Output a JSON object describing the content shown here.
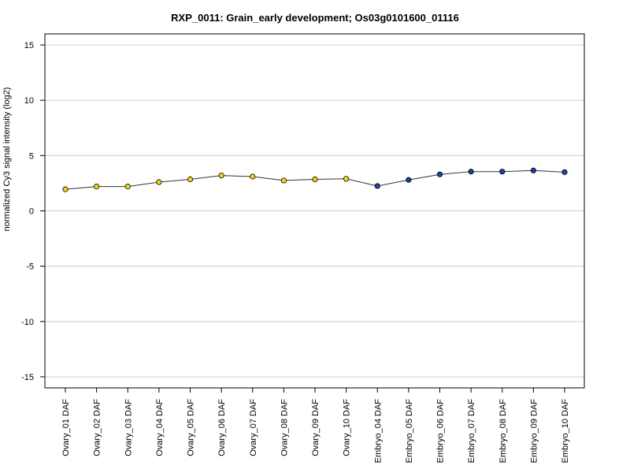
{
  "chart_data": {
    "type": "line",
    "title": "RXP_0011: Grain_early development; Os03g0101600_01116",
    "xlabel": "",
    "ylabel": "normalized Cy3 signal intensity (log2)",
    "ylim": [
      -16,
      16
    ],
    "yticks": [
      "-15",
      "-10",
      "-5",
      "0",
      "5",
      "10",
      "15"
    ],
    "grid": true,
    "categories": [
      "Ovary_01 DAF",
      "Ovary_02 DAF",
      "Ovary_03 DAF",
      "Ovary_04 DAF",
      "Ovary_05 DAF",
      "Ovary_06 DAF",
      "Ovary_07 DAF",
      "Ovary_08 DAF",
      "Ovary_09 DAF",
      "Ovary_10 DAF",
      "Embryo_04 DAF",
      "Embryo_05 DAF",
      "Embryo_06 DAF",
      "Embryo_07 DAF",
      "Embryo_08 DAF",
      "Embryo_09 DAF",
      "Embryo_10 DAF"
    ],
    "series": [
      {
        "values": [
          1.95,
          2.2,
          2.2,
          2.6,
          2.85,
          3.2,
          3.1,
          2.75,
          2.85,
          2.9,
          2.25,
          2.8,
          3.3,
          3.55,
          3.55,
          3.65,
          3.5
        ],
        "point_colors": [
          "#f2d31b",
          "#f2d31b",
          "#f2d31b",
          "#f2d31b",
          "#f2d31b",
          "#f2d31b",
          "#f2d31b",
          "#f2d31b",
          "#f2d31b",
          "#f2d31b",
          "#1f3fa8",
          "#1f3fa8",
          "#1f3fa8",
          "#1f3fa8",
          "#1f3fa8",
          "#1f3fa8",
          "#1f3fa8"
        ]
      }
    ],
    "colors": {
      "ovary": "#f2d31b",
      "embryo": "#1f3fa8",
      "line": "#333333",
      "grid": "#cccccc"
    }
  }
}
